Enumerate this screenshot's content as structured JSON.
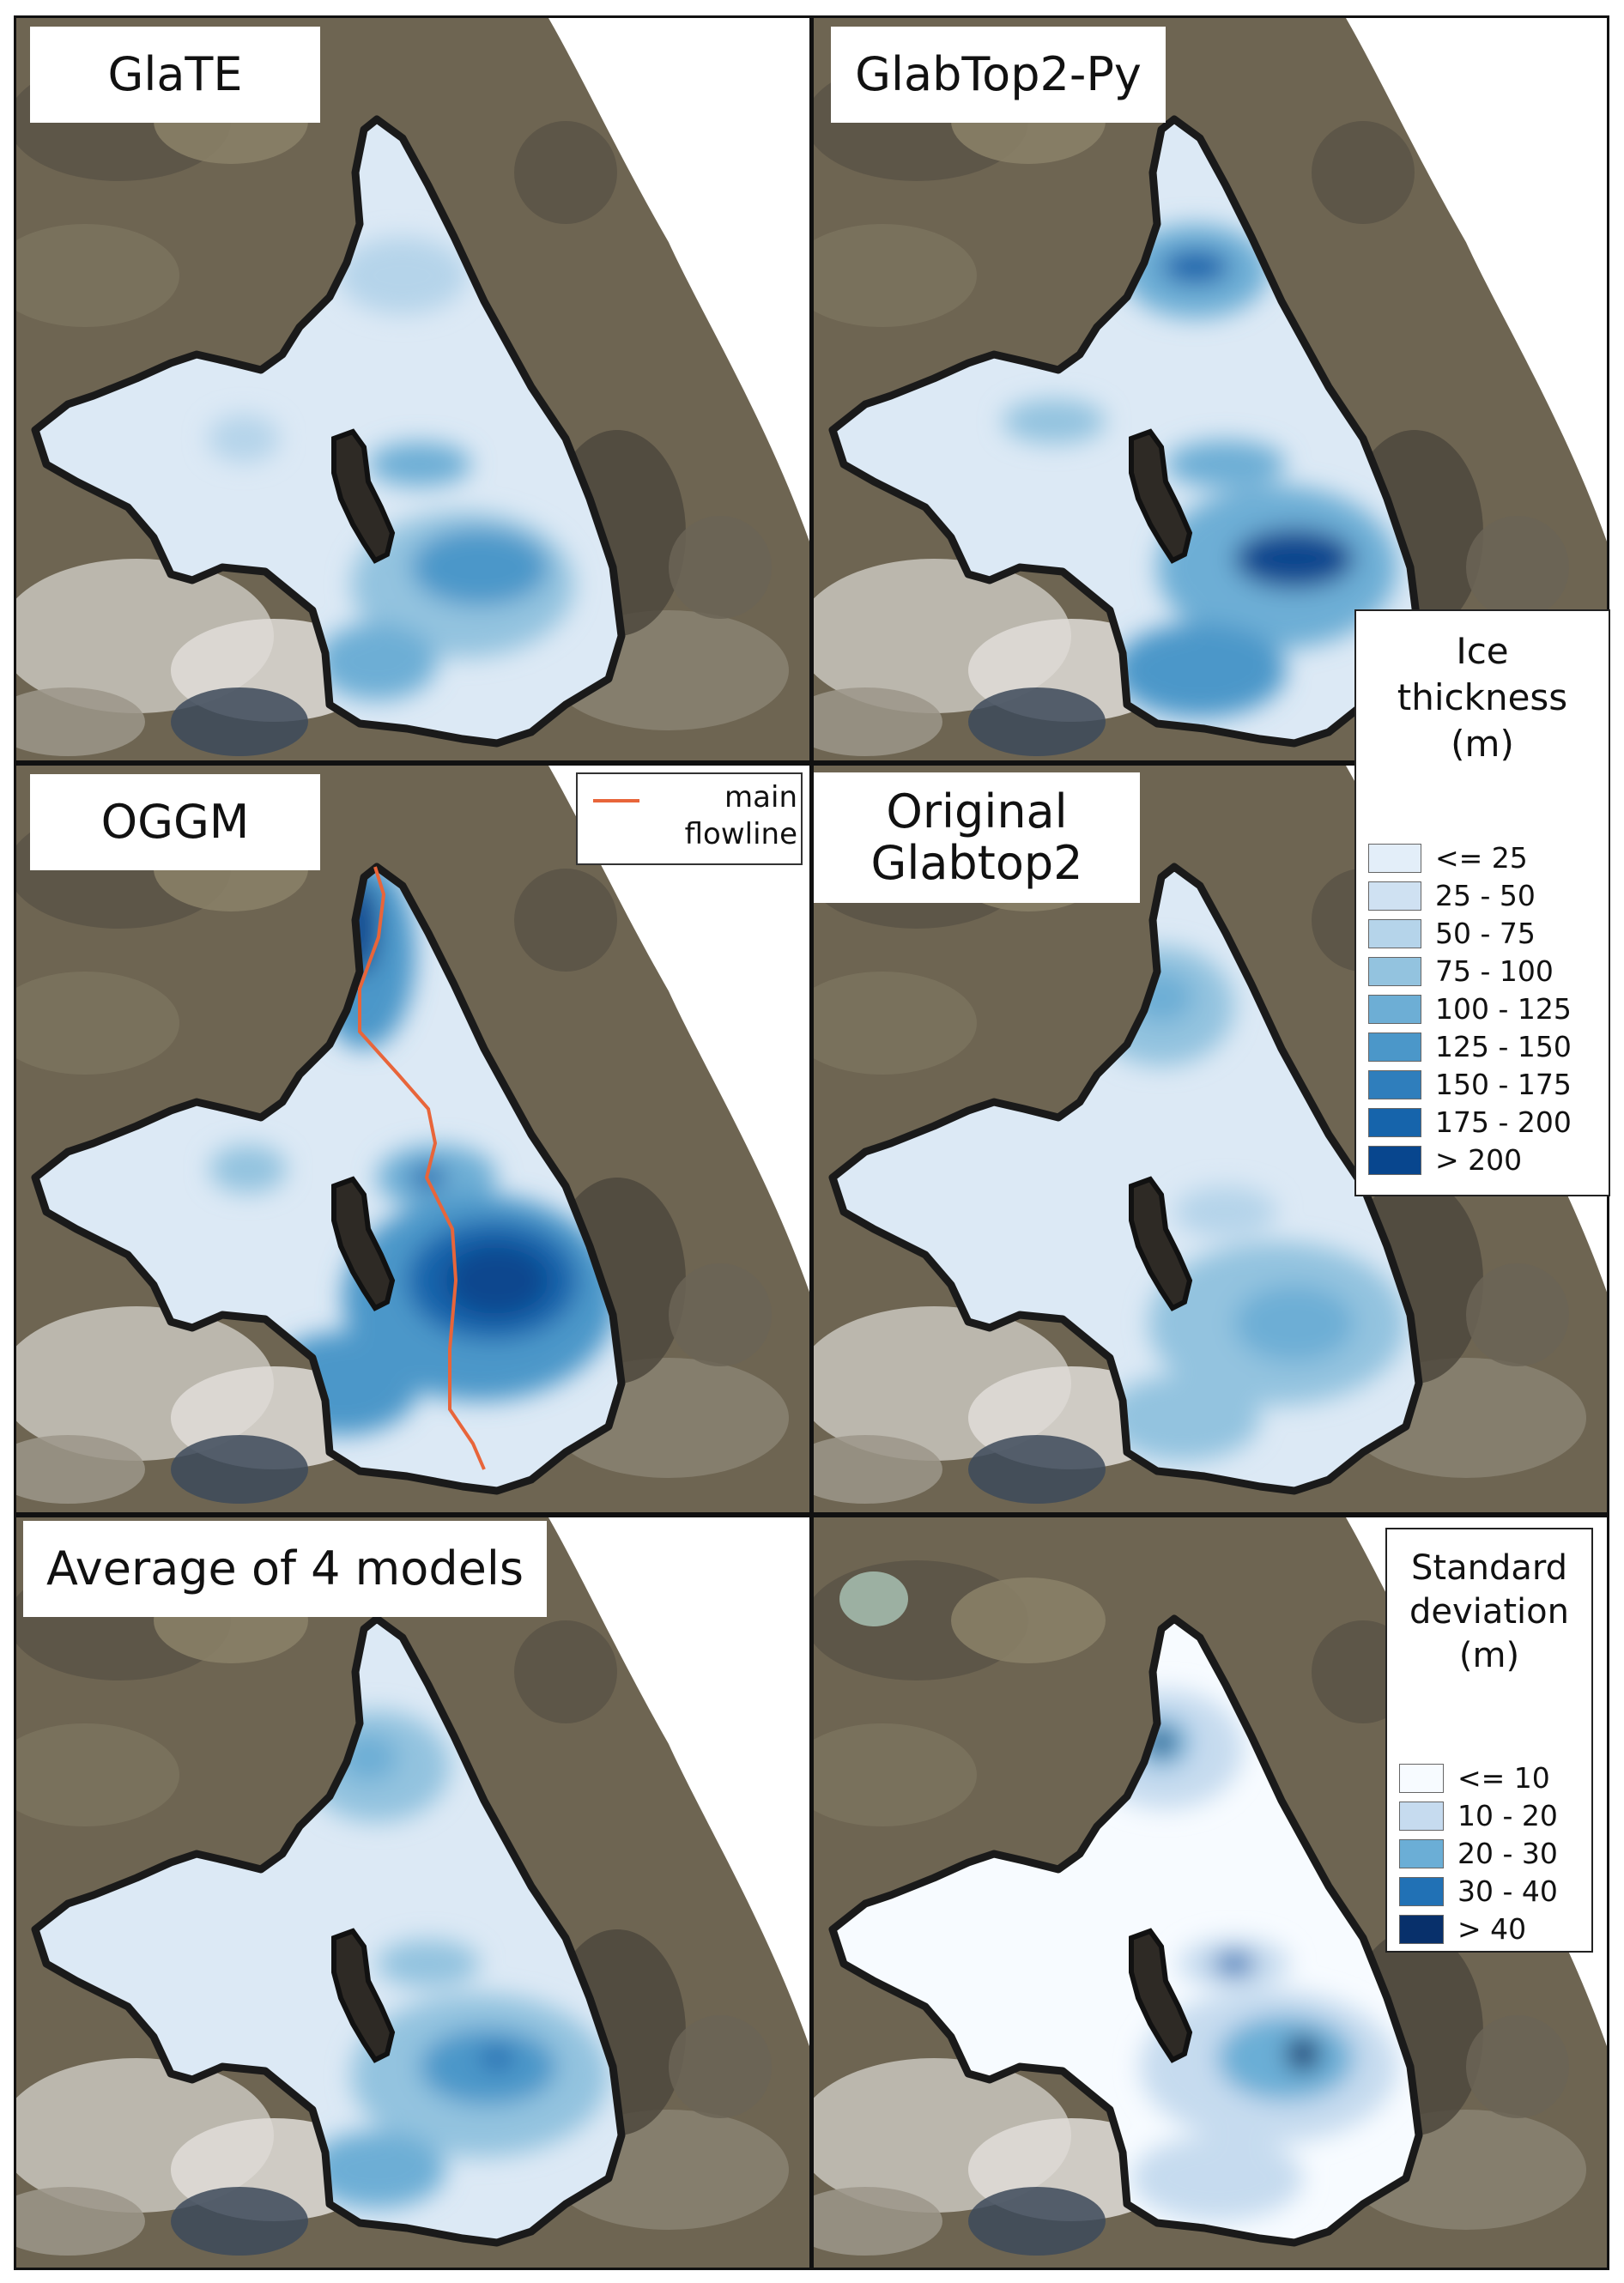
{
  "panels": [
    {
      "id": "glate",
      "title": "GlaTE",
      "variant": "glate"
    },
    {
      "id": "glabtop2py",
      "title": "GlabTop2-Py",
      "variant": "py"
    },
    {
      "id": "oggm",
      "title": "OGGM",
      "variant": "oggm"
    },
    {
      "id": "original",
      "title": "Original\nGlabtop2",
      "variant": "orig"
    },
    {
      "id": "average",
      "title": "Average of 4 models",
      "variant": "avg"
    },
    {
      "id": "stddev",
      "title": "",
      "variant": "std"
    }
  ],
  "flowline_legend": {
    "label": "main\nflowline",
    "color": "#e8653a"
  },
  "ice_legend": {
    "title": "Ice\nthickness\n(m)",
    "classes": [
      {
        "label": "<= 25",
        "color": "#e3eef9"
      },
      {
        "label": "25 - 50",
        "color": "#cfe1f2"
      },
      {
        "label": "50 - 75",
        "color": "#b5d4ea"
      },
      {
        "label": "75 - 100",
        "color": "#93c3df"
      },
      {
        "label": "100 - 125",
        "color": "#6daed5"
      },
      {
        "label": "125 - 150",
        "color": "#4b97c9"
      },
      {
        "label": "150 - 175",
        "color": "#2f7ebc"
      },
      {
        "label": "175 - 200",
        "color": "#1664ab"
      },
      {
        "label": "> 200",
        "color": "#08468e"
      }
    ]
  },
  "std_legend": {
    "title": "Standard\ndeviation\n(m)",
    "classes": [
      {
        "label": "<= 10",
        "color": "#f7fbff"
      },
      {
        "label": "10 - 20",
        "color": "#c6dbef"
      },
      {
        "label": "20 - 30",
        "color": "#6baed6"
      },
      {
        "label": "30 - 40",
        "color": "#2171b5"
      },
      {
        "label": "> 40",
        "color": "#08306b"
      }
    ]
  }
}
